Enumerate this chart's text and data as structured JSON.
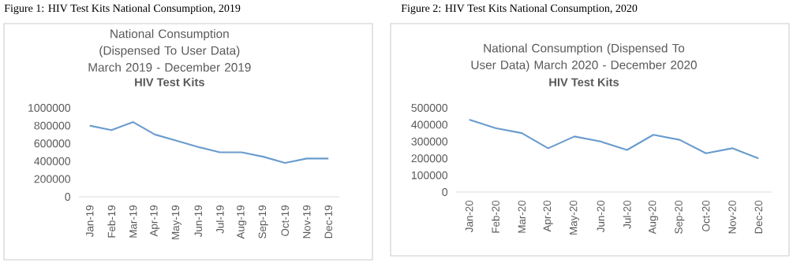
{
  "chart_data": [
    {
      "type": "line",
      "title": "National Consumption (Dispensed To User Data) March 2019 - December 2019",
      "subtitle": "HIV Test Kits",
      "annotations": [
        "Figure 1: HIV Test Kits National Consumption, 2019"
      ],
      "categories": [
        "Jan-19",
        "Feb-19",
        "Mar-19",
        "Apr-19",
        "May-19",
        "Jun-19",
        "Jul-19",
        "Aug-19",
        "Sep-19",
        "Oct-19",
        "Nov-19",
        "Dec-19"
      ],
      "values": [
        800000,
        750000,
        840000,
        700000,
        630000,
        560000,
        500000,
        500000,
        450000,
        380000,
        430000,
        430000
      ],
      "color": "#6a9ccd",
      "marker": "none",
      "ylim": [
        0,
        1000000
      ],
      "yticks": [
        0,
        200000,
        400000,
        600000,
        800000,
        1000000
      ]
    },
    {
      "type": "line",
      "title": "National Consumption (Dispensed To User Data) March 2020 - December 2020",
      "subtitle": "HIV Test Kits",
      "annotations": [
        "Figure 2: HIV Test Kits National Consumption, 2020"
      ],
      "categories": [
        "Jan-20",
        "Feb-20",
        "Mar-20",
        "Apr-20",
        "May-20",
        "Jun-20",
        "Jul-20",
        "Aug-20",
        "Sep-20",
        "Oct-20",
        "Nov-20",
        "Dec-20"
      ],
      "values": [
        430000,
        380000,
        350000,
        260000,
        330000,
        300000,
        250000,
        340000,
        310000,
        230000,
        260000,
        200000
      ],
      "color": "#6a9ccd",
      "marker": "none",
      "ylim": [
        0,
        500000
      ],
      "yticks": [
        0,
        100000,
        200000,
        300000,
        400000,
        500000
      ]
    }
  ]
}
